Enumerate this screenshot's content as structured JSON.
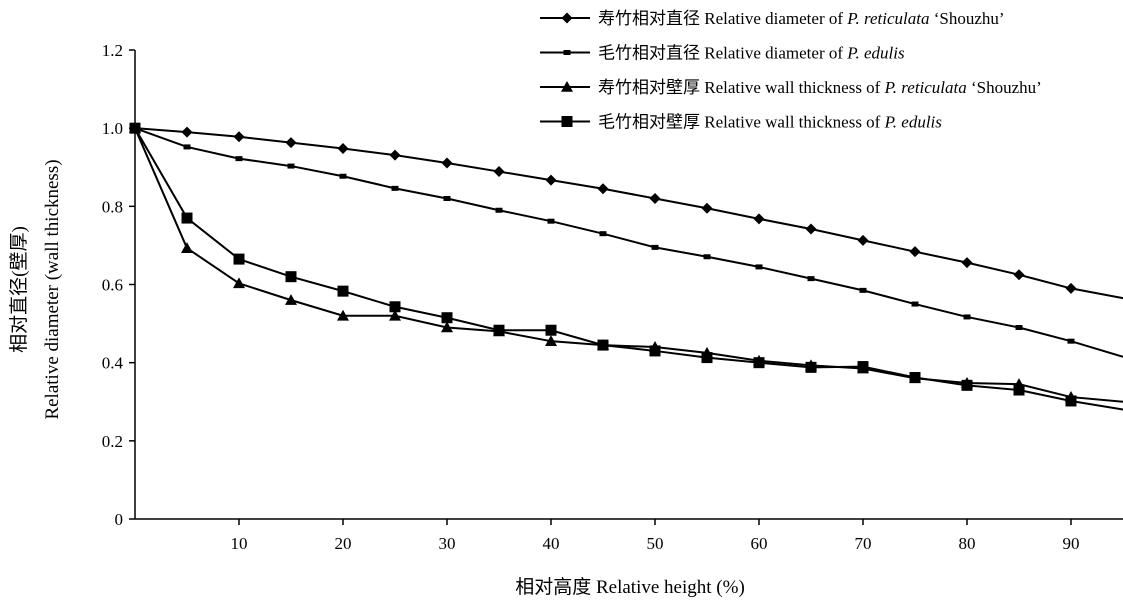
{
  "chart_data": {
    "type": "line",
    "xlabel": "相对高度 Relative height (%)",
    "ylabel_line1": "相对直径(壁厚)",
    "ylabel_line2": "Relative diameter (wall thickness)",
    "xlim": [
      0,
      95
    ],
    "ylim": [
      0,
      1.2
    ],
    "x_ticks": [
      10,
      20,
      30,
      40,
      50,
      60,
      70,
      80,
      90
    ],
    "y_ticks": [
      0,
      0.2,
      0.4,
      0.6,
      0.8,
      1.0,
      1.2
    ],
    "y_tick_labels": [
      "0",
      "0.2",
      "0.4",
      "0.6",
      "0.8",
      "1.0",
      "1.2"
    ],
    "grid": false,
    "legend_position": "top-right",
    "series": [
      {
        "name": "寿竹相对直径 Relative diameter of P. reticulata ‘Shouzhu’",
        "legend_parts": [
          {
            "text": "寿竹相对直径  Relative diameter of ",
            "italic": false
          },
          {
            "text": "P. reticulata",
            "italic": true
          },
          {
            "text": " ‘Shouzhu’",
            "italic": false
          }
        ],
        "marker": "diamond",
        "x": [
          0,
          5,
          10,
          15,
          20,
          25,
          30,
          35,
          40,
          45,
          50,
          55,
          60,
          65,
          70,
          75,
          80,
          85,
          90,
          95
        ],
        "values": [
          1.0,
          0.99,
          0.978,
          0.963,
          0.948,
          0.931,
          0.911,
          0.889,
          0.867,
          0.845,
          0.82,
          0.795,
          0.768,
          0.742,
          0.713,
          0.684,
          0.656,
          0.625,
          0.59,
          0.565
        ]
      },
      {
        "name": "毛竹相对直径 Relative diameter of P. edulis",
        "legend_parts": [
          {
            "text": "毛竹相对直径  Relative diameter of ",
            "italic": false
          },
          {
            "text": "P. edulis",
            "italic": true
          }
        ],
        "marker": "dash",
        "x": [
          0,
          5,
          10,
          15,
          20,
          25,
          30,
          35,
          40,
          45,
          50,
          55,
          60,
          65,
          70,
          75,
          80,
          85,
          90,
          95
        ],
        "values": [
          1.0,
          0.952,
          0.922,
          0.903,
          0.877,
          0.846,
          0.82,
          0.79,
          0.762,
          0.73,
          0.695,
          0.671,
          0.645,
          0.615,
          0.585,
          0.55,
          0.517,
          0.49,
          0.455,
          0.415
        ]
      },
      {
        "name": "寿竹相对壁厚 Relative wall thickness of P. reticulata ‘Shouzhu’",
        "legend_parts": [
          {
            "text": "寿竹相对壁厚  Relative wall thickness of ",
            "italic": false
          },
          {
            "text": "P. reticulata",
            "italic": true
          },
          {
            "text": " ‘Shouzhu’",
            "italic": false
          }
        ],
        "marker": "triangle",
        "x": [
          0,
          5,
          10,
          15,
          20,
          25,
          30,
          35,
          40,
          45,
          50,
          55,
          60,
          65,
          70,
          75,
          80,
          85,
          90,
          95
        ],
        "values": [
          1.0,
          0.693,
          0.603,
          0.56,
          0.52,
          0.52,
          0.49,
          0.48,
          0.455,
          0.445,
          0.44,
          0.425,
          0.405,
          0.393,
          0.385,
          0.36,
          0.348,
          0.345,
          0.312,
          0.3
        ]
      },
      {
        "name": "毛竹相对壁厚 Relative wall thickness of P. edulis",
        "legend_parts": [
          {
            "text": "毛竹相对壁厚  Relative wall thickness of  ",
            "italic": false
          },
          {
            "text": "P. edulis",
            "italic": true
          }
        ],
        "marker": "square",
        "x": [
          0,
          5,
          10,
          15,
          20,
          25,
          30,
          35,
          40,
          45,
          50,
          55,
          60,
          65,
          70,
          75,
          80,
          85,
          90,
          95
        ],
        "values": [
          1.0,
          0.77,
          0.665,
          0.62,
          0.583,
          0.543,
          0.515,
          0.483,
          0.483,
          0.445,
          0.43,
          0.413,
          0.4,
          0.388,
          0.39,
          0.362,
          0.342,
          0.33,
          0.302,
          0.28
        ]
      }
    ]
  }
}
